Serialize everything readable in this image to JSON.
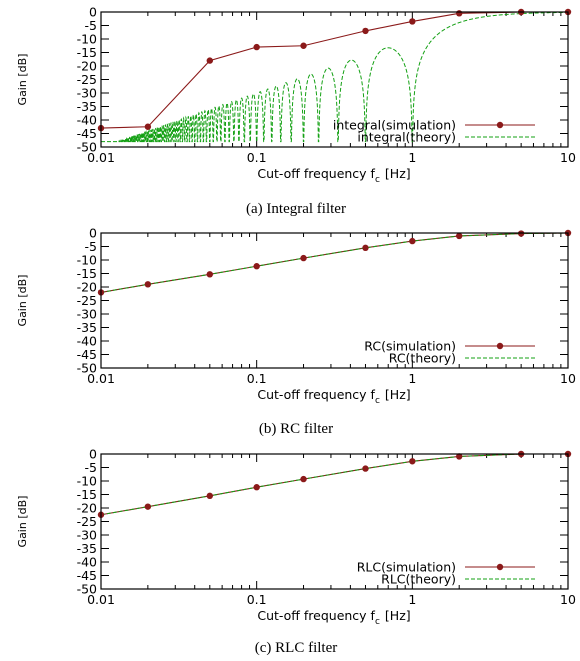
{
  "colors": {
    "simulation": "#8b1a1a",
    "theory": "#13a013",
    "axis": "#000000"
  },
  "chart_data": [
    {
      "type": "line",
      "caption": "(a) Integral filter",
      "xlabel": "Cut-off frequency f",
      "xlabel_sub": "c",
      "xlabel_unit": "[Hz]",
      "ylabel": "Gain [dB]",
      "xscale": "log",
      "xlim": [
        0.01,
        10
      ],
      "ylim": [
        -50,
        0
      ],
      "x_ticks": [
        0.01,
        0.1,
        1,
        10
      ],
      "x_tick_labels": [
        "0.01",
        "0.1",
        "1",
        "10"
      ],
      "y_ticks": [
        0,
        -5,
        -10,
        -15,
        -20,
        -25,
        -30,
        -35,
        -40,
        -45,
        -50
      ],
      "y_tick_labels": [
        "0",
        "-5",
        "-10",
        "-15",
        "-20",
        "-25",
        "-30",
        "-35",
        "-40",
        "-45",
        "-50"
      ],
      "legend_position": "bottom-right",
      "series": [
        {
          "name": "integral(simulation)",
          "style": "solid-markers",
          "x": [
            0.01,
            0.02,
            0.05,
            0.1,
            0.2,
            0.5,
            1,
            2,
            5,
            10
          ],
          "y": [
            -43,
            -42.5,
            -18,
            -13,
            -12.5,
            -7,
            -3.5,
            -0.5,
            0,
            0
          ]
        },
        {
          "name": "integral(theory)",
          "style": "dashed",
          "model": "sinc",
          "x_range": [
            0.01,
            10
          ],
          "floor": -48
        }
      ]
    },
    {
      "type": "line",
      "caption": "(b) RC filter",
      "xlabel": "Cut-off frequency f",
      "xlabel_sub": "c",
      "xlabel_unit": "[Hz]",
      "ylabel": "Gain [dB]",
      "xscale": "log",
      "xlim": [
        0.01,
        10
      ],
      "ylim": [
        -50,
        0
      ],
      "x_ticks": [
        0.01,
        0.1,
        1,
        10
      ],
      "x_tick_labels": [
        "0.01",
        "0.1",
        "1",
        "10"
      ],
      "y_ticks": [
        0,
        -5,
        -10,
        -15,
        -20,
        -25,
        -30,
        -35,
        -40,
        -45,
        -50
      ],
      "y_tick_labels": [
        "0",
        "-5",
        "-10",
        "-15",
        "-20",
        "-25",
        "-30",
        "-35",
        "-40",
        "-45",
        "-50"
      ],
      "legend_position": "bottom-right",
      "series": [
        {
          "name": "RC(simulation)",
          "style": "solid-markers",
          "x": [
            0.01,
            0.02,
            0.05,
            0.1,
            0.2,
            0.5,
            1,
            2,
            5,
            10
          ],
          "y": [
            -22,
            -19,
            -15.3,
            -12.3,
            -9.3,
            -5.5,
            -3,
            -1.1,
            -0.2,
            0
          ]
        },
        {
          "name": "RC(theory)",
          "style": "dashed",
          "x": [
            0.01,
            0.02,
            0.05,
            0.1,
            0.2,
            0.5,
            1,
            2,
            5,
            10
          ],
          "y": [
            -22,
            -19,
            -15.3,
            -12.3,
            -9.3,
            -5.5,
            -3,
            -1.1,
            -0.2,
            0
          ]
        }
      ]
    },
    {
      "type": "line",
      "caption": "(c) RLC filter",
      "xlabel": "Cut-off frequency f",
      "xlabel_sub": "c",
      "xlabel_unit": "[Hz]",
      "ylabel": "Gain [dB]",
      "xscale": "log",
      "xlim": [
        0.01,
        10
      ],
      "ylim": [
        -50,
        0
      ],
      "x_ticks": [
        0.01,
        0.1,
        1,
        10
      ],
      "x_tick_labels": [
        "0.01",
        "0.1",
        "1",
        "10"
      ],
      "y_ticks": [
        0,
        -5,
        -10,
        -15,
        -20,
        -25,
        -30,
        -35,
        -40,
        -45,
        -50
      ],
      "y_tick_labels": [
        "0",
        "-5",
        "-10",
        "-15",
        "-20",
        "-25",
        "-30",
        "-35",
        "-40",
        "-45",
        "-50"
      ],
      "legend_position": "bottom-right",
      "series": [
        {
          "name": "RLC(simulation)",
          "style": "solid-markers",
          "x": [
            0.01,
            0.02,
            0.05,
            0.1,
            0.2,
            0.5,
            1,
            2,
            5,
            10
          ],
          "y": [
            -22.5,
            -19.5,
            -15.5,
            -12.3,
            -9.3,
            -5.4,
            -2.7,
            -0.9,
            0,
            0
          ]
        },
        {
          "name": "RLC(theory)",
          "style": "dashed",
          "x": [
            0.01,
            0.02,
            0.05,
            0.1,
            0.2,
            0.5,
            1,
            2,
            5,
            10
          ],
          "y": [
            -22.5,
            -19.5,
            -15.5,
            -12.3,
            -9.3,
            -5.4,
            -2.7,
            -0.9,
            0,
            0
          ]
        }
      ]
    }
  ]
}
